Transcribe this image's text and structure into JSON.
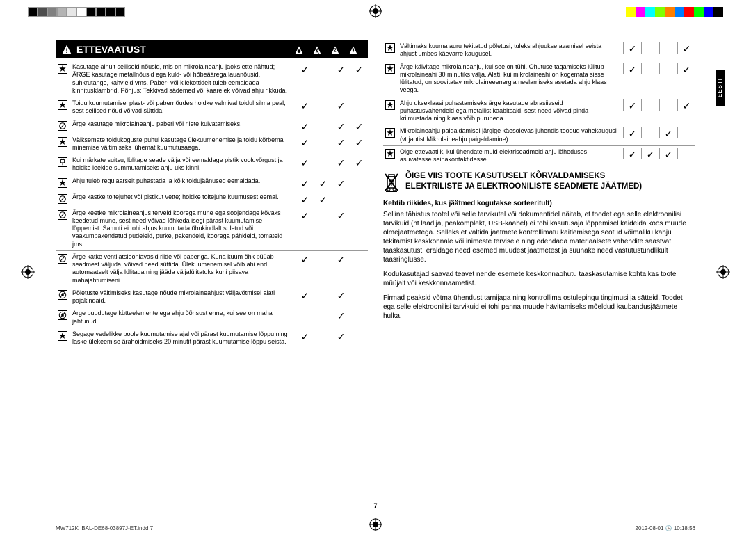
{
  "colorbars": {
    "left": [
      "#000",
      "#4d4d4d",
      "#808080",
      "#b3b3b3",
      "#e6e6e6",
      "#ffffff",
      "#000",
      "#000",
      "#000",
      "#000"
    ],
    "right": [
      "#ffff00",
      "#ff00ff",
      "#00ffff",
      "#7fff00",
      "#ff7f00",
      "#007fff",
      "#ff0000",
      "#00ff00",
      "#0000ff",
      "#000000"
    ]
  },
  "header": {
    "title": "ETTEVAATUST"
  },
  "sideTab": "EESTI",
  "leftRows": [
    {
      "icon": "star",
      "text": "Kasutage ainult selliseid nõusid, mis on mikrolaineahju jaoks ette nähtud; ÄRGE kasutage metallnõusid ega kuld- või hõbeäärega lauanõusid, suhkrutange, kahvleid vms. Paber- või kilekottidelt tuleb eemaldada kinnitusklambrid. Põhjus: Tekkivad sädemed või kaarelek võivad ahju rikkuda.",
      "checks": [
        true,
        false,
        true,
        true
      ]
    },
    {
      "icon": "star",
      "text": "Toidu kuumutamisel plast- või pabernõudes hoidke valmival toidul silma peal, sest sellised nõud võivad süttida.",
      "checks": [
        true,
        false,
        true,
        false
      ]
    },
    {
      "icon": "slash",
      "text": "Ärge kasutage mikrolaineahju paberi või riiete kuivatamiseks.",
      "checks": [
        true,
        false,
        true,
        true
      ]
    },
    {
      "icon": "star",
      "text": "Väiksemate toidukoguste puhul kasutage ülekuumenemise ja toidu kõrbema minemise vältimiseks lühemat kuumutusaega.",
      "checks": [
        true,
        false,
        true,
        true
      ]
    },
    {
      "icon": "plug",
      "text": "Kui märkate suitsu, lülitage seade välja või eemaldage pistik vooluvõrgust ja hoidke leekide summutamiseks ahju uks kinni.",
      "checks": [
        true,
        false,
        true,
        true
      ]
    },
    {
      "icon": "star",
      "text": "Ahju tuleb regulaarselt puhastada ja kõik toidujäänused eemaldada.",
      "checks": [
        true,
        true,
        true,
        false
      ]
    },
    {
      "icon": "slash",
      "text": "Ärge kastke toitejuhet või pistikut vette; hoidke toitejuhe kuumusest eemal.",
      "checks": [
        true,
        true,
        false,
        false
      ]
    },
    {
      "icon": "slash",
      "text": "Ärge keetke mikrolaineahjus terveid koorega mune ega soojendage kõvaks keedetud mune, sest need võivad lõhkeda isegi pärast kuumutamise lõppemist. Samuti ei tohi ahjus kuumutada õhukindlalt suletud või vaakumpakendatud pudeleid, purke, pakendeid, koorega pähkleid, tomateid jms.",
      "checks": [
        true,
        false,
        true,
        false
      ]
    },
    {
      "icon": "slash",
      "text": "Ärge katke ventilatsiooniavasid riide või paberiga. Kuna kuum õhk püüab seadmest väljuda, võivad need süttida. Ülekuumenemisel võib ahi end automaatselt välja lülitada ning jääda väljalülitatuks kuni piisava mahajahtumiseni.",
      "checks": [
        true,
        false,
        true,
        false
      ]
    },
    {
      "icon": "nohand",
      "text": "Põletuste vältimiseks kasutage nõude mikrolaineahjust väljavõtmisel alati pajakindaid.",
      "checks": [
        true,
        false,
        true,
        false
      ]
    },
    {
      "icon": "nohand",
      "text": "Ärge puudutage kütteelemente ega ahju õõnsust enne, kui see on maha jahtunud.",
      "checks": [
        false,
        false,
        true,
        false
      ]
    },
    {
      "icon": "star",
      "text": "Segage vedelikke poole kuumutamise ajal või pärast kuumutamise lõppu ning laske ülekeemise ärahoidmiseks 20 minutit pärast kuumutamise lõppu seista.",
      "checks": [
        true,
        false,
        true,
        false
      ]
    }
  ],
  "rightRows": [
    {
      "icon": "star",
      "text": "Vältimaks kuuma auru tekitatud põletusi, tuleks ahjuukse avamisel seista ahjust umbes käevarre kaugusel.",
      "checks": [
        true,
        false,
        false,
        true
      ]
    },
    {
      "icon": "star",
      "text": "Ärge käivitage mikrolaineahju, kui see on tühi. Ohutuse tagamiseks lülitub mikrolaineahi 30 minutiks välja. Alati, kui mikrolaineahi on kogemata sisse lülitatud, on soovitatav mikrolaineeenergia neelamiseks asetada ahju klaas veega.",
      "checks": [
        true,
        false,
        false,
        true
      ]
    },
    {
      "icon": "star",
      "text": "Ahju ukseklaasi puhastamiseks ärge kasutage abrasiivseid puhastusvahendeid ega metallist kaabitsaid, sest need võivad pinda kriimustada ning klaas võib puruneda.",
      "checks": [
        true,
        false,
        false,
        true
      ]
    },
    {
      "icon": "star",
      "text": "Mikrolaineahju paigaldamisel järgige käesolevas juhendis toodud vahekaugusi (vt jaotist Mikrolaineahju paigaldamine)",
      "checks": [
        true,
        false,
        true,
        false
      ]
    },
    {
      "icon": "star",
      "text": "Olge ettevaatlik, kui ühendate muid elektriseadmeid ahju läheduses asuvatesse seinakontaktidesse.",
      "checks": [
        true,
        true,
        true,
        false
      ]
    }
  ],
  "section": {
    "title_line1": "ÕIGE VIIS TOOTE KASUTUSELT KÕRVALDAMISEKS",
    "title_line2": "ELEKTRILISTE JA ELEKTROONILISTE SEADMETE JÄÄTMED)",
    "subheading": "Kehtib riikides, kus jäätmed kogutakse sorteeritult)",
    "p1": "Selline tähistus tootel või selle tarvikutel või dokumentidel näitab, et toodet ega selle elektroonilisi tarvikuid (nt laadija, peakomplekt, USB-kaabel) ei tohi kasutusaja lõppemisel käidelda koos muude olmejäätmetega. Selleks et vältida jäätmete kontrollimatu käitlemisega seotud võimaliku kahju tekitamist keskkonnale või inimeste tervisele ning edendada materiaalsete vahendite säästvat taaskasutust, eraldage need esemed muudest jäätmetest ja suunake need vastutustundlikult taasringlusse.",
    "p2": "Kodukasutajad saavad teavet nende esemete keskkonnaohutu taaskasutamise kohta kas toote müüjalt või keskkonnaametist.",
    "p3": "Firmad peaksid võtma ühendust tarnijaga ning kontrollima ostulepingu tingimusi ja sätteid. Toodet ega selle elektroonilisi tarvikuid ei tohi panna muude hävitamiseks mõeldud kaubandusjäätmete hulka."
  },
  "pageNumber": "7",
  "footer": {
    "left": "MW712K_BAL-DE68-03897J-ET.indd   7",
    "right": "2012-08-01   🕒 10:18:56"
  }
}
